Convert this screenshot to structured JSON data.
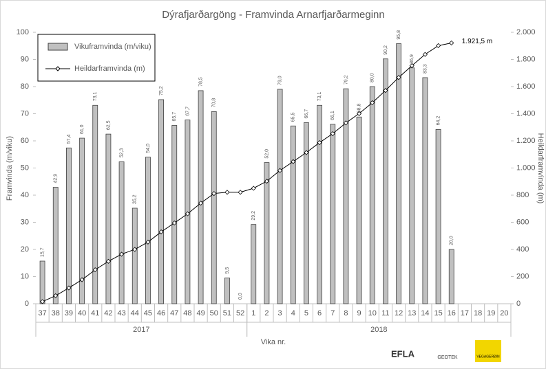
{
  "chart_data": {
    "type": "bar_line",
    "title": "Dýrafjarðargöng - Framvinda Arnarfjarðarmeginn",
    "y_label": "Framvinda (m/viku)",
    "y2_label": "Heildarframvinda (m)",
    "x_label": "Vika nr.",
    "categories": [
      "37",
      "38",
      "39",
      "40",
      "41",
      "42",
      "43",
      "44",
      "45",
      "46",
      "47",
      "48",
      "49",
      "50",
      "51",
      "52",
      "1",
      "2",
      "3",
      "4",
      "5",
      "6",
      "7",
      "8",
      "9",
      "10",
      "11",
      "12",
      "13",
      "14",
      "15",
      "16",
      "17",
      "18",
      "19",
      "20"
    ],
    "groups": [
      {
        "label": "2017",
        "count": 16
      },
      {
        "label": "2018",
        "count": 20
      }
    ],
    "series": [
      {
        "name": "Vikuframvinda (m/viku)",
        "color": "#c0c0c0",
        "kind": "bar",
        "values": [
          15.7,
          42.9,
          57.4,
          61.0,
          73.1,
          62.5,
          52.3,
          35.2,
          54.0,
          75.2,
          65.7,
          67.7,
          78.5,
          70.8,
          9.5,
          0.0,
          29.2,
          52.0,
          79.0,
          65.5,
          66.7,
          73.1,
          66.1,
          79.2,
          68.8,
          80.0,
          90.2,
          95.8,
          86.9,
          83.3,
          64.2,
          20.0,
          null,
          null,
          null,
          null
        ],
        "value_labels": [
          "15,7",
          "42,9",
          "57,4",
          "61,0",
          "73,1",
          "62,5",
          "52,3",
          "35,2",
          "54,0",
          "75,2",
          "65,7",
          "67,7",
          "78,5",
          "70,8",
          "9,5",
          "0,0",
          "29,2",
          "52,0",
          "79,0",
          "65,5",
          "66,7",
          "73,1",
          "66,1",
          "79,2",
          "68,8",
          "80,0",
          "90,2",
          "95,8",
          "86,9",
          "83,3",
          "64,2",
          "20,0",
          null,
          null,
          null,
          null
        ]
      },
      {
        "name": "Heildarframvinda (m)",
        "color": "#000000",
        "kind": "line",
        "axis": "y2",
        "values": [
          15.7,
          58.6,
          116.0,
          177.0,
          250.1,
          312.6,
          364.9,
          400.1,
          454.1,
          529.3,
          595.0,
          662.7,
          741.2,
          812.0,
          821.5,
          821.5,
          850.7,
          902.7,
          981.7,
          1047.2,
          1113.9,
          1187.0,
          1253.1,
          1332.3,
          1401.1,
          1481.1,
          1571.3,
          1667.1,
          1754.0,
          1837.3,
          1901.5,
          1921.5,
          null,
          null,
          null,
          null
        ]
      }
    ],
    "annotation": "1.921,5 m",
    "ylim": [
      0,
      100
    ],
    "yticks": [
      0,
      10,
      20,
      30,
      40,
      50,
      60,
      70,
      80,
      90,
      100
    ],
    "y2lim": [
      0,
      2000
    ],
    "y2ticks": [
      0,
      200,
      400,
      600,
      800,
      {
        "value": 1000,
        "label": "1.000"
      },
      {
        "value": 1200,
        "label": "1.200"
      },
      {
        "value": 1400,
        "label": "1.400"
      },
      {
        "value": 1600,
        "label": "1.600"
      },
      {
        "value": 1800,
        "label": "1.800"
      },
      {
        "value": 2000,
        "label": "2.000"
      }
    ],
    "grid": false,
    "legend": "top-left",
    "logos": [
      "EFLA",
      "GEOTEK",
      "VEGAGERÐIN"
    ]
  }
}
